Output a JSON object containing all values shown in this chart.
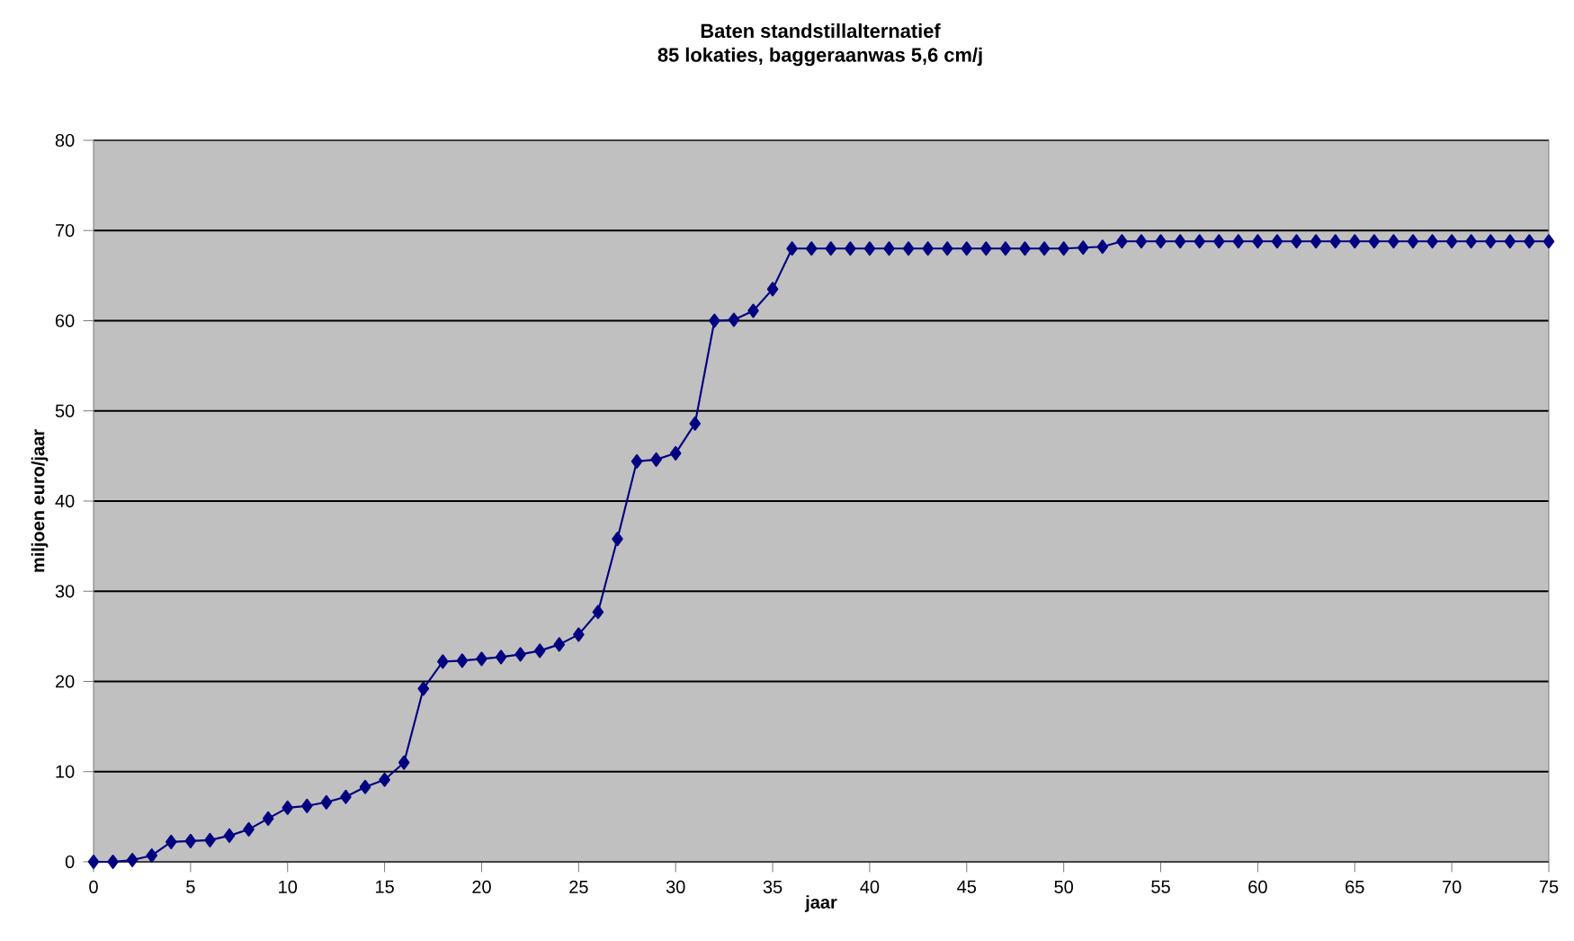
{
  "chart_data": {
    "type": "line",
    "title": "Baten standstillalternatief",
    "subtitle": "85 lokaties, baggeraanwas 5,6 cm/j",
    "xlabel": "jaar",
    "ylabel": "miljoen euro/jaar",
    "x": [
      0,
      1,
      2,
      3,
      4,
      5,
      6,
      7,
      8,
      9,
      10,
      11,
      12,
      13,
      14,
      15,
      16,
      17,
      18,
      19,
      20,
      21,
      22,
      23,
      24,
      25,
      26,
      27,
      28,
      29,
      30,
      31,
      32,
      33,
      34,
      35,
      36,
      37,
      38,
      39,
      40,
      41,
      42,
      43,
      44,
      45,
      46,
      47,
      48,
      49,
      50,
      51,
      52,
      53,
      54,
      55,
      56,
      57,
      58,
      59,
      60,
      61,
      62,
      63,
      64,
      65,
      66,
      67,
      68,
      69,
      70,
      71,
      72,
      73,
      74,
      75
    ],
    "series": [
      {
        "color": "#000080",
        "values": [
          0,
          0,
          0.2,
          0.7,
          2.2,
          2.3,
          2.4,
          2.9,
          3.6,
          4.8,
          6.0,
          6.2,
          6.6,
          7.2,
          8.3,
          9.1,
          11.0,
          19.2,
          22.2,
          22.3,
          22.5,
          22.7,
          23.0,
          23.4,
          24.1,
          25.2,
          27.7,
          35.8,
          44.4,
          44.6,
          45.3,
          48.6,
          60.0,
          60.1,
          61.1,
          63.5,
          68.0,
          68.0,
          68.0,
          68.0,
          68.0,
          68.0,
          68.0,
          68.0,
          68.0,
          68.0,
          68.0,
          68.0,
          68.0,
          68.0,
          68.0,
          68.1,
          68.2,
          68.8,
          68.8,
          68.8,
          68.8,
          68.8,
          68.8,
          68.8,
          68.8,
          68.8,
          68.8,
          68.8,
          68.8,
          68.8,
          68.8,
          68.8,
          68.8,
          68.8,
          68.8,
          68.8,
          68.8,
          68.8,
          68.8,
          68.8
        ]
      }
    ],
    "xlim": [
      0,
      75
    ],
    "xticks": [
      0,
      5,
      10,
      15,
      20,
      25,
      30,
      35,
      40,
      45,
      50,
      55,
      60,
      65,
      70,
      75
    ],
    "ylim": [
      0,
      80
    ],
    "yticks": [
      0,
      10,
      20,
      30,
      40,
      50,
      60,
      70,
      80
    ],
    "grid": "y",
    "marker": "diamond",
    "line_style": "solid"
  }
}
